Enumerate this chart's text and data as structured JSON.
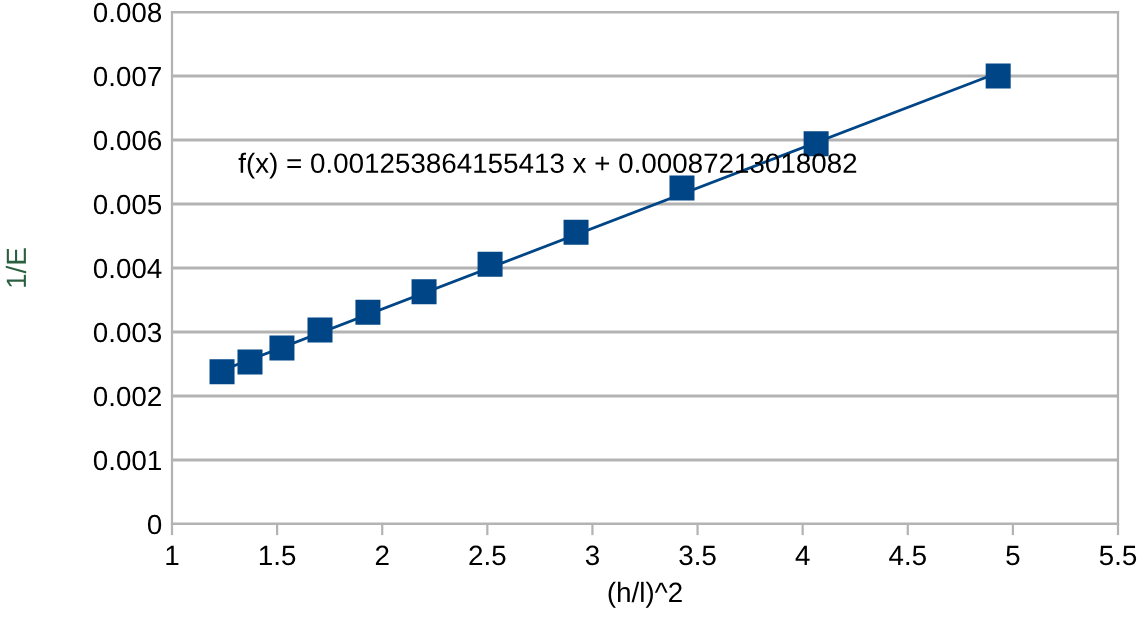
{
  "chart_data": {
    "type": "scatter",
    "xlabel": "(h/l)^2",
    "ylabel": "1/E",
    "xlim": [
      1,
      5.5
    ],
    "xticks": [
      1,
      1.5,
      2,
      2.5,
      3,
      3.5,
      4,
      4.5,
      5,
      5.5
    ],
    "ylim": [
      0,
      0.008
    ],
    "yticks": [
      0,
      0.001,
      0.002,
      0.003,
      0.004,
      0.005,
      0.006,
      0.007,
      0.008
    ],
    "grid": "y",
    "marker": "square",
    "series": [
      {
        "color": "#004586",
        "x": [
          1.238,
          1.371,
          1.523,
          1.704,
          1.932,
          2.199,
          2.513,
          2.922,
          3.426,
          4.064,
          4.93
        ],
        "values": [
          0.00238,
          0.00253,
          0.00275,
          0.00303,
          0.00331,
          0.00363,
          0.00406,
          0.00456,
          0.00525,
          0.00594,
          0.007
        ]
      },
      {
        "type": "line",
        "color": "#004586",
        "marker": "none",
        "x": [
          1.238,
          4.93
        ],
        "values": [
          0.0024,
          0.00705
        ]
      }
    ],
    "annotations": [
      "f(x) = 0.001253864155413 x + 0.00087213018082"
    ]
  }
}
